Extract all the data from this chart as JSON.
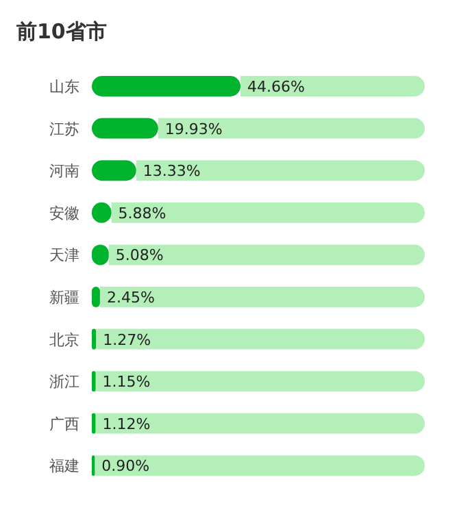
{
  "chart_data": {
    "type": "bar",
    "orientation": "horizontal",
    "stacked": true,
    "title": "前10省市",
    "categories": [
      "山东",
      "江苏",
      "河南",
      "安徽",
      "天津",
      "新疆",
      "北京",
      "浙江",
      "广西",
      "福建"
    ],
    "series": [
      {
        "color": "#00b32c",
        "values": [
          44.66,
          19.93,
          13.33,
          5.88,
          5.08,
          2.45,
          1.27,
          1.15,
          1.12,
          0.9
        ],
        "value_labels": [
          "44.66%",
          "19.93%",
          "13.33%",
          "5.88%",
          "5.08%",
          "2.45%",
          "1.27%",
          "1.15%",
          "1.12%",
          "0.90%"
        ]
      },
      {
        "color": "#b4efb9",
        "values": [
          55.34,
          80.07,
          86.67,
          94.12,
          94.92,
          97.55,
          98.73,
          98.85,
          98.88,
          99.1
        ]
      }
    ],
    "xlim": [
      0,
      100
    ]
  }
}
